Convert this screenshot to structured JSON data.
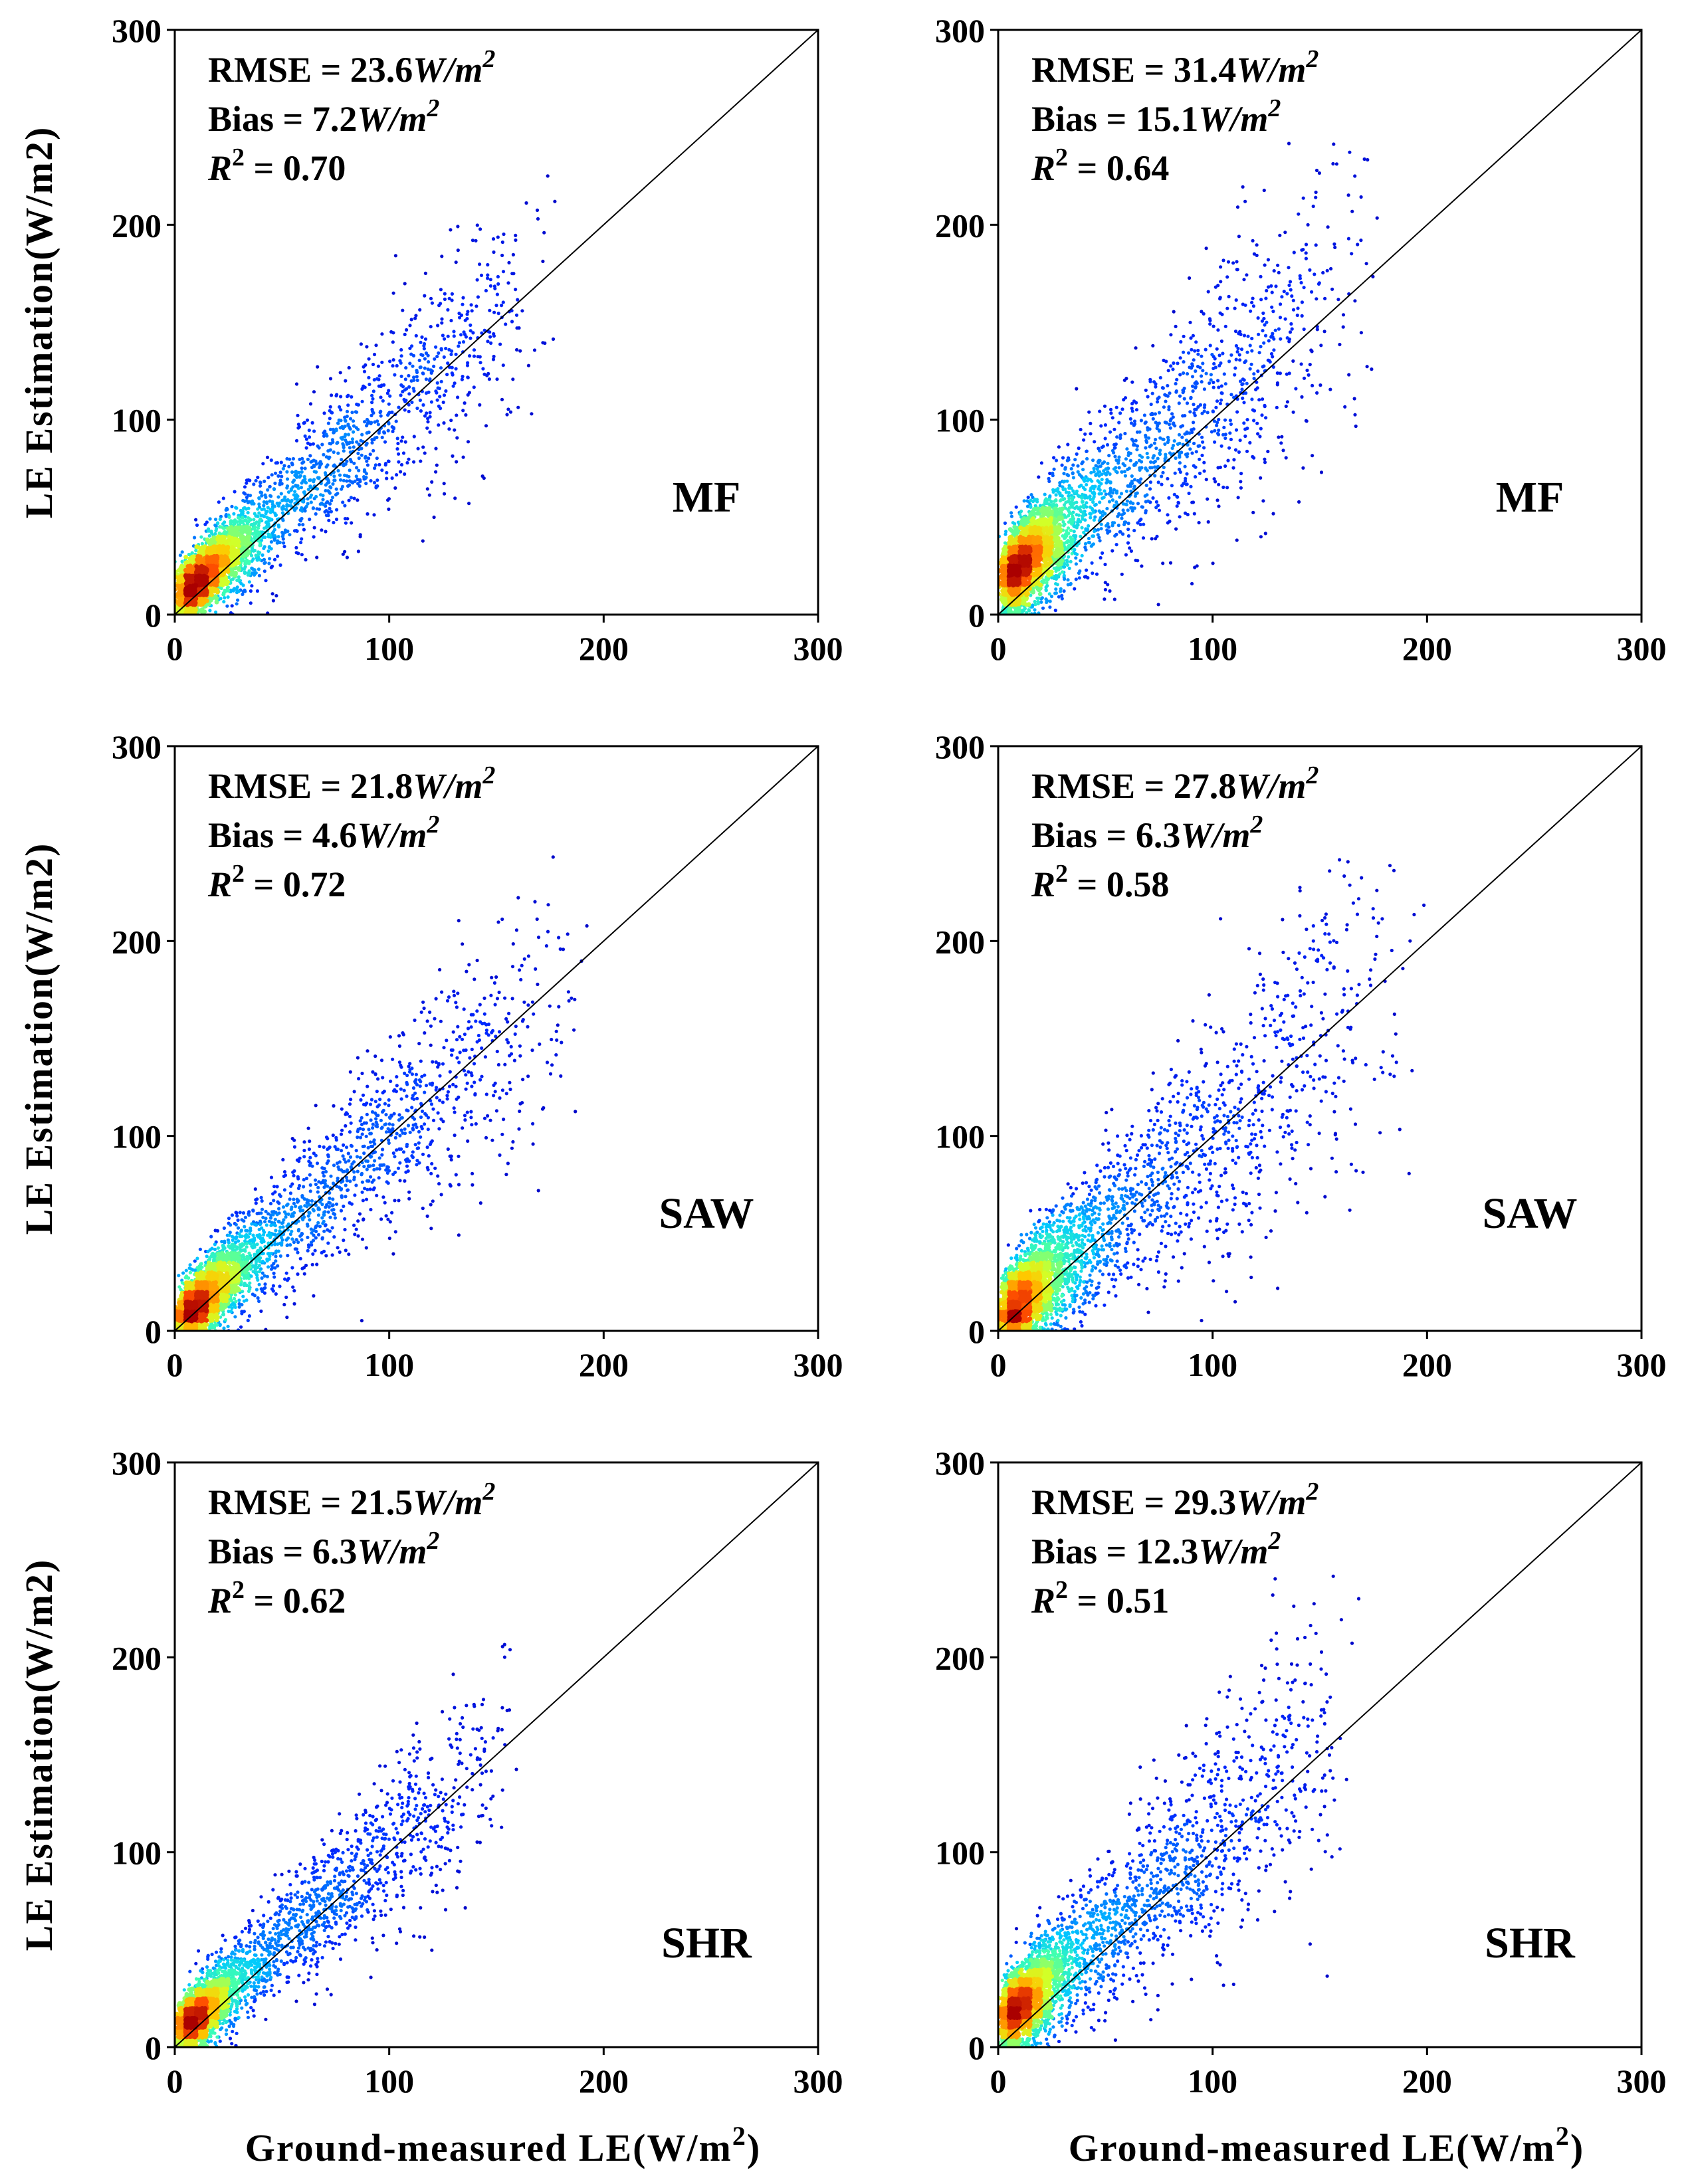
{
  "figure": {
    "y_axis_title": "LE Estimation(W/m2)",
    "x_axis_title_base": "Ground-measured LE(W/m",
    "x_axis_title_sup": "2",
    "x_axis_title_close": ")"
  },
  "chart_data": [
    {
      "type": "scatter",
      "panel": "top-left",
      "class_label": "MF",
      "xlim": [
        0,
        300
      ],
      "ylim": [
        0,
        300
      ],
      "xticks": [
        0,
        100,
        200,
        300
      ],
      "yticks": [
        0,
        100,
        200,
        300
      ],
      "one_to_one_line": true,
      "stats": {
        "rmse": "23.6",
        "bias": "7.2",
        "r2": "0.70"
      },
      "cluster": {
        "x_mean": 45,
        "bias": 7.2,
        "slope": 0.95,
        "spread_x": 38,
        "noise": 20,
        "x_max": 180
      }
    },
    {
      "type": "scatter",
      "panel": "top-right",
      "class_label": "MF",
      "xlim": [
        0,
        300
      ],
      "ylim": [
        0,
        300
      ],
      "xticks": [
        0,
        100,
        200,
        300
      ],
      "yticks": [
        0,
        100,
        200,
        300
      ],
      "one_to_one_line": true,
      "stats": {
        "rmse": "31.4",
        "bias": "15.1",
        "r2": "0.64"
      },
      "cluster": {
        "x_mean": 45,
        "bias": 15.1,
        "slope": 0.95,
        "spread_x": 38,
        "noise": 26,
        "x_max": 180
      }
    },
    {
      "type": "scatter",
      "panel": "middle-left",
      "class_label": "SAW",
      "xlim": [
        0,
        300
      ],
      "ylim": [
        0,
        300
      ],
      "xticks": [
        0,
        100,
        200,
        300
      ],
      "yticks": [
        0,
        100,
        200,
        300
      ],
      "one_to_one_line": true,
      "stats": {
        "rmse": "21.8",
        "bias": "4.6",
        "r2": "0.72"
      },
      "cluster": {
        "x_mean": 55,
        "bias": 4.6,
        "slope": 0.95,
        "spread_x": 40,
        "noise": 20,
        "x_max": 195
      }
    },
    {
      "type": "scatter",
      "panel": "middle-right",
      "class_label": "SAW",
      "xlim": [
        0,
        300
      ],
      "ylim": [
        0,
        300
      ],
      "xticks": [
        0,
        100,
        200,
        300
      ],
      "yticks": [
        0,
        100,
        200,
        300
      ],
      "one_to_one_line": true,
      "stats": {
        "rmse": "27.8",
        "bias": "6.3",
        "r2": "0.58"
      },
      "cluster": {
        "x_mean": 55,
        "bias": 6.3,
        "slope": 0.95,
        "spread_x": 40,
        "noise": 26,
        "x_max": 200
      }
    },
    {
      "type": "scatter",
      "panel": "bottom-left",
      "class_label": "SHR",
      "xlim": [
        0,
        300
      ],
      "ylim": [
        0,
        300
      ],
      "xticks": [
        0,
        100,
        200,
        300
      ],
      "yticks": [
        0,
        100,
        200,
        300
      ],
      "one_to_one_line": true,
      "stats": {
        "rmse": "21.5",
        "bias": "6.3",
        "r2": "0.62"
      },
      "cluster": {
        "x_mean": 35,
        "bias": 6.3,
        "slope": 0.95,
        "spread_x": 30,
        "noise": 18,
        "x_max": 165
      }
    },
    {
      "type": "scatter",
      "panel": "bottom-right",
      "class_label": "SHR",
      "xlim": [
        0,
        300
      ],
      "ylim": [
        0,
        300
      ],
      "xticks": [
        0,
        100,
        200,
        300
      ],
      "yticks": [
        0,
        100,
        200,
        300
      ],
      "one_to_one_line": true,
      "stats": {
        "rmse": "29.3",
        "bias": "12.3",
        "r2": "0.51"
      },
      "cluster": {
        "x_mean": 38,
        "bias": 12.3,
        "slope": 0.95,
        "spread_x": 32,
        "noise": 24,
        "x_max": 170
      }
    }
  ]
}
